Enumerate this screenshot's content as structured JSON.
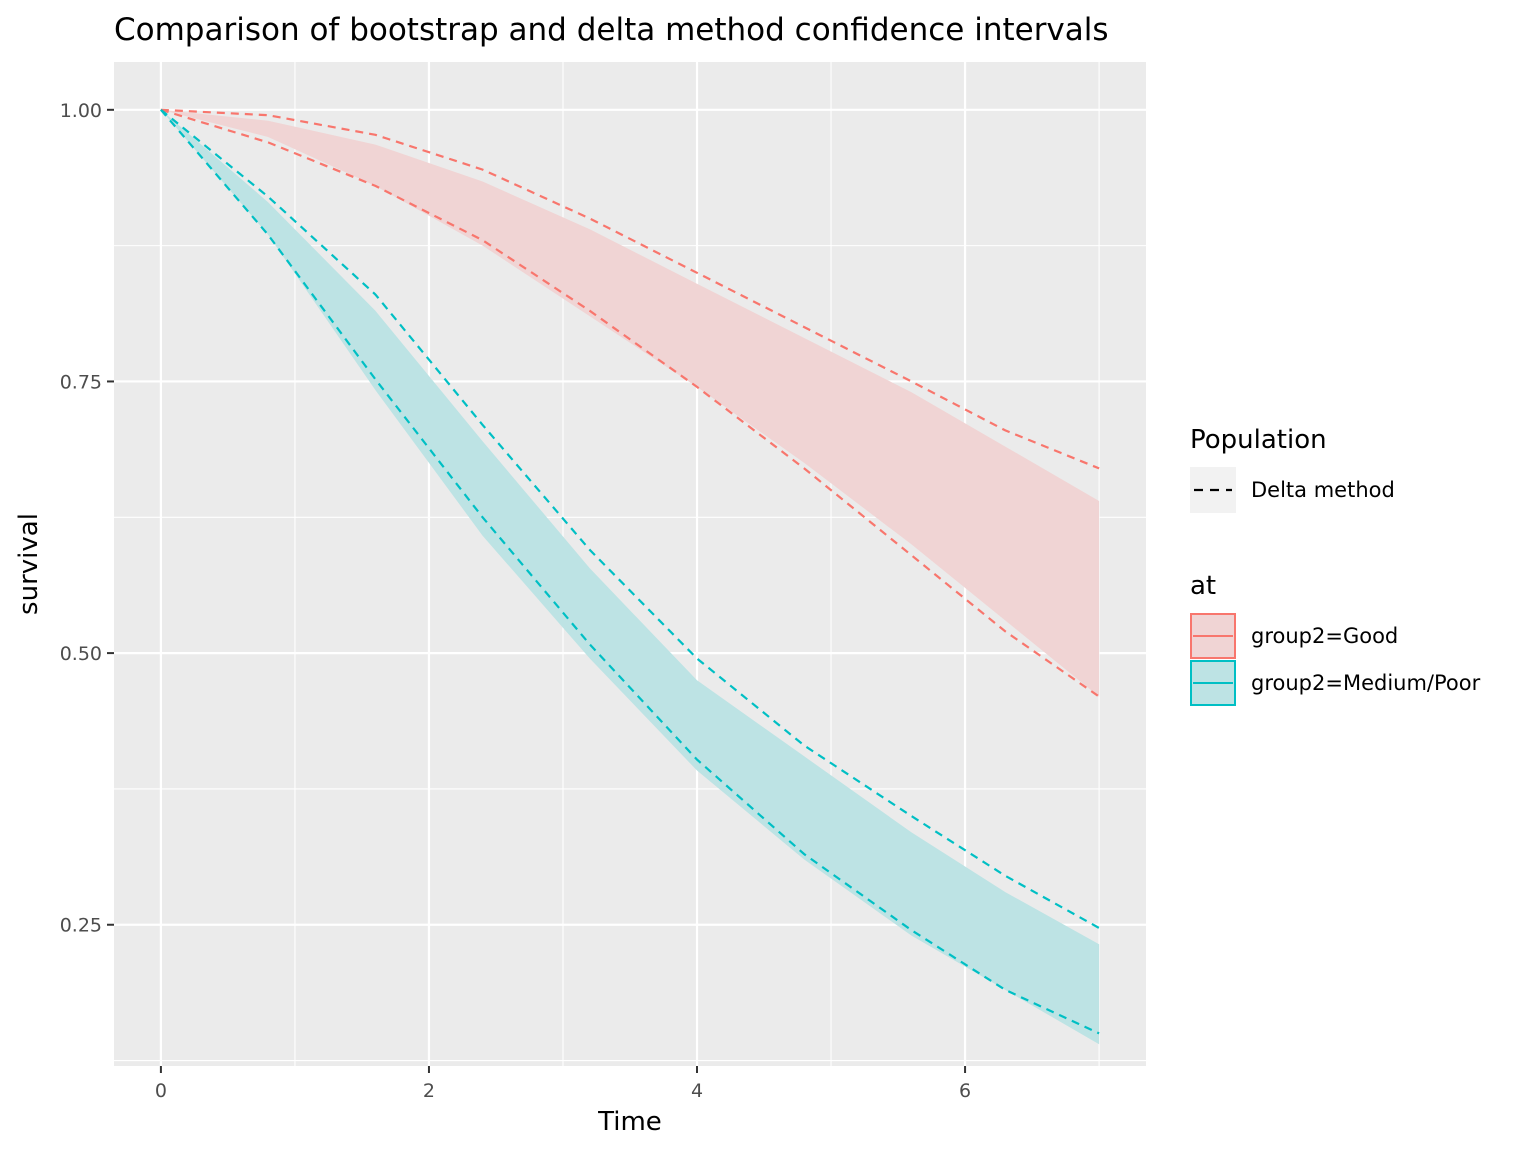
{
  "chart_data": {
    "type": "area",
    "title": "Comparison of bootstrap and delta method confidence intervals",
    "xlabel": "Time",
    "ylabel": "survival",
    "xlim": [
      -0.35,
      7.35
    ],
    "ylim": [
      0.12,
      1.044
    ],
    "x_ticks": [
      0,
      2,
      4,
      6
    ],
    "x_tick_labels": [
      "0",
      "2",
      "4",
      "6"
    ],
    "y_ticks": [
      0.25,
      0.5,
      0.75,
      1.0
    ],
    "y_tick_labels": [
      "0.25",
      "0.50",
      "0.75",
      "1.00"
    ],
    "grid": true,
    "legend_position": "right",
    "legend": {
      "linetype_title": "Population",
      "linetype_entries": [
        "Delta method"
      ],
      "color_title": "at",
      "color_entries": [
        "group2=Good",
        "group2=Medium/Poor"
      ]
    },
    "series": [
      {
        "name": "group2=Good",
        "color": "#F8766D",
        "fill": "#F0D4D4",
        "x": [
          0,
          0.8,
          1.6,
          2.4,
          3.2,
          4.0,
          4.8,
          5.6,
          6.3,
          7.0
        ],
        "ribbon_lower": [
          1.0,
          0.975,
          0.93,
          0.875,
          0.81,
          0.745,
          0.675,
          0.6,
          0.53,
          0.46
        ],
        "ribbon_upper": [
          1.0,
          0.99,
          0.968,
          0.934,
          0.89,
          0.84,
          0.79,
          0.74,
          0.69,
          0.64
        ],
        "delta_lower": [
          1.0,
          0.97,
          0.93,
          0.88,
          0.815,
          0.745,
          0.67,
          0.59,
          0.52,
          0.46
        ],
        "delta_upper": [
          1.0,
          0.995,
          0.977,
          0.945,
          0.9,
          0.85,
          0.8,
          0.75,
          0.705,
          0.67
        ]
      },
      {
        "name": "group2=Medium/Poor",
        "color": "#00BFC4",
        "fill": "#BDE3E4",
        "x": [
          0,
          0.8,
          1.6,
          2.4,
          3.2,
          4.0,
          4.8,
          5.6,
          6.3,
          7.0
        ],
        "ribbon_lower": [
          1.0,
          0.885,
          0.742,
          0.608,
          0.495,
          0.392,
          0.31,
          0.24,
          0.19,
          0.14
        ],
        "ribbon_upper": [
          1.0,
          0.915,
          0.815,
          0.695,
          0.578,
          0.475,
          0.405,
          0.335,
          0.28,
          0.232
        ],
        "delta_lower": [
          1.0,
          0.885,
          0.752,
          0.625,
          0.508,
          0.402,
          0.315,
          0.245,
          0.19,
          0.15
        ],
        "delta_upper": [
          1.0,
          0.92,
          0.83,
          0.71,
          0.595,
          0.495,
          0.415,
          0.35,
          0.295,
          0.247
        ]
      }
    ]
  }
}
